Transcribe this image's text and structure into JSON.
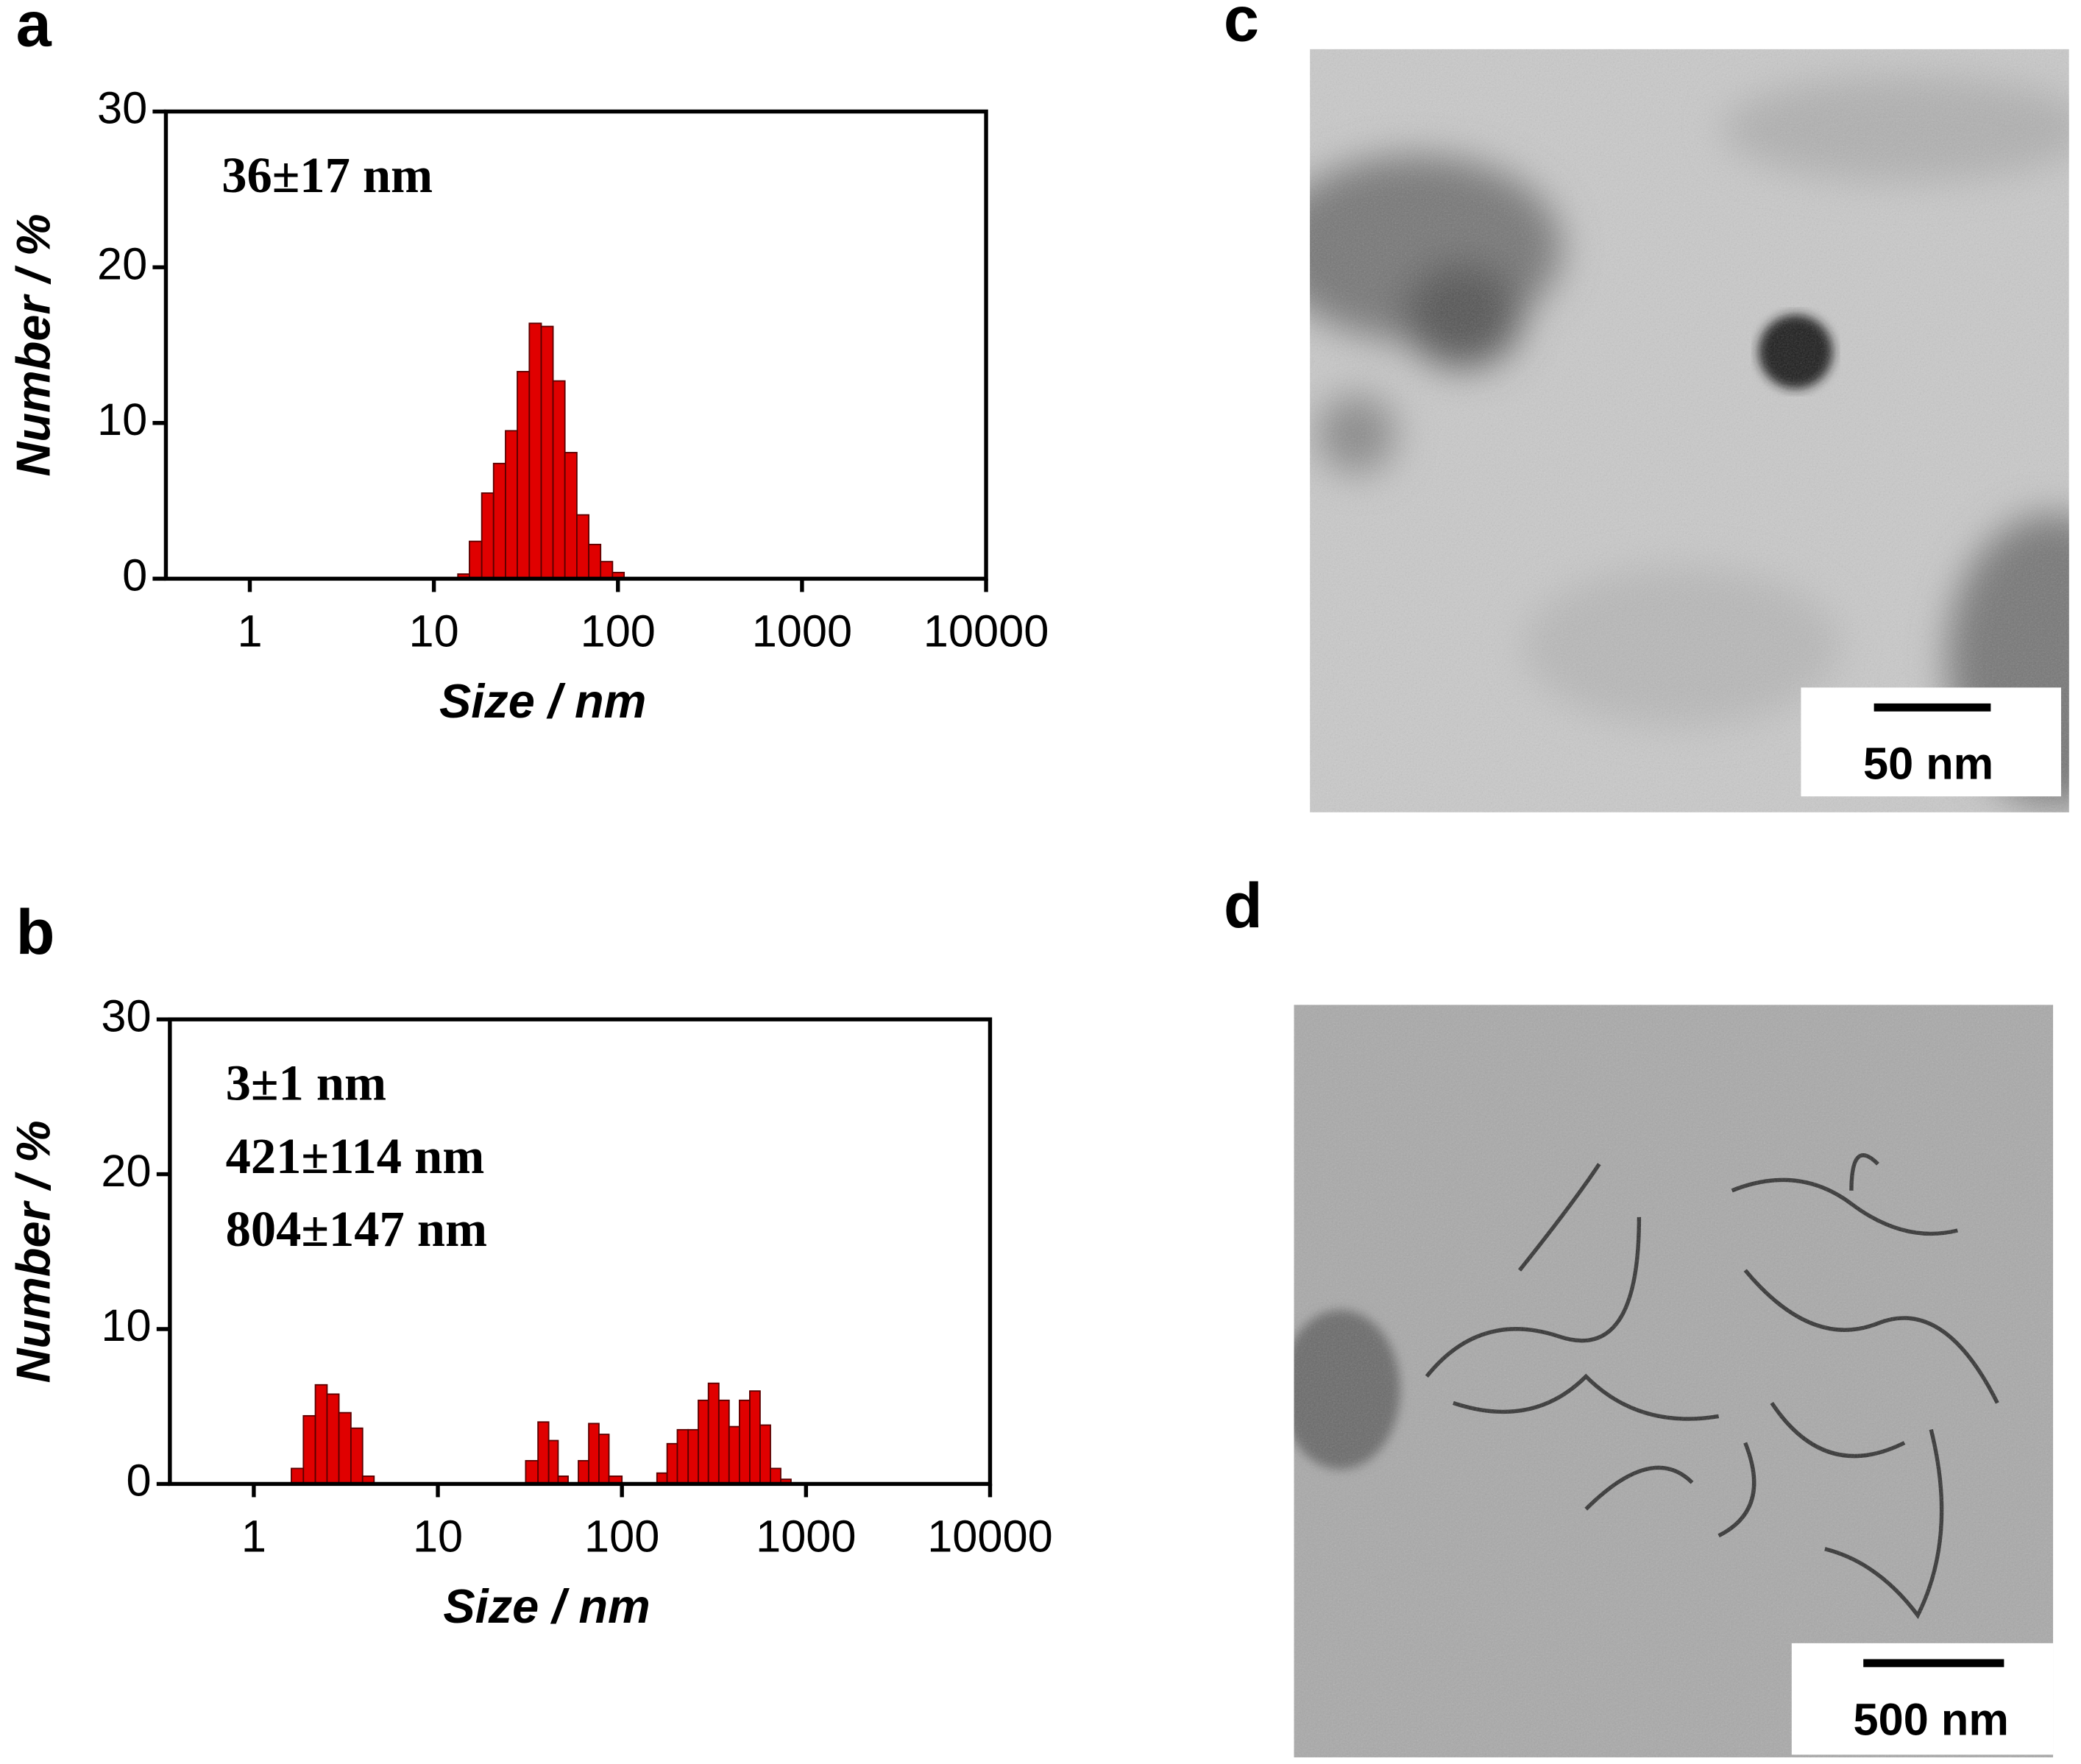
{
  "chart_data": [
    {
      "type": "histogram",
      "panel_label": "a",
      "xlabel": "Size / nm",
      "ylabel": "Number / %",
      "annotations": [
        "36±17 nm"
      ],
      "bins": [
        13.5,
        15.6,
        18.2,
        21.1,
        24.5,
        28.4,
        33,
        38.3,
        44.4,
        51.5,
        59.8,
        69.4,
        80.5,
        93.4,
        108
      ],
      "values": [
        0.3,
        2.4,
        5.5,
        7.4,
        9.5,
        13.3,
        16.4,
        16.2,
        12.7,
        8.1,
        4.1,
        2.2,
        1.1,
        0.4
      ],
      "color": "#e00000",
      "log_x": true,
      "xlim": [
        0.35,
        10000
      ],
      "xticks": [
        1,
        10,
        100,
        1000,
        10000
      ],
      "ylim": [
        0,
        30
      ],
      "yticks": [
        0,
        10,
        20,
        30
      ]
    },
    {
      "type": "histogram",
      "panel_label": "b",
      "xlabel": "Size / nm",
      "ylabel": "Number / %",
      "annotations": [
        "3±1 nm",
        "421±114 nm",
        "804±147 nm"
      ],
      "bins": [
        1.6,
        1.86,
        2.16,
        2.5,
        2.9,
        3.37,
        3.9,
        4.5,
        30,
        35,
        40,
        45,
        51,
        58,
        66,
        75,
        85,
        100,
        155,
        176,
        200,
        229,
        260,
        295,
        336,
        382,
        435,
        495,
        563,
        641,
        729,
        829
      ],
      "values": [
        1.0,
        4.4,
        6.4,
        5.8,
        4.6,
        3.6,
        0.5,
        0,
        1.5,
        4.0,
        2.8,
        0.5,
        0,
        1.5,
        3.9,
        3.2,
        0.5,
        0,
        0.7,
        2.6,
        3.5,
        3.5,
        5.4,
        6.5,
        5.4,
        3.7,
        5.4,
        6.0,
        3.8,
        1.0,
        0.3
      ],
      "color": "#e00000",
      "log_x": true,
      "xlim": [
        0.35,
        10000
      ],
      "xticks": [
        1,
        10,
        100,
        1000,
        10000
      ],
      "ylim": [
        0,
        30
      ],
      "yticks": [
        0,
        10,
        20,
        30
      ]
    }
  ],
  "images": [
    {
      "panel_label": "c",
      "scale_bar": "50 nm"
    },
    {
      "panel_label": "d",
      "scale_bar": "500 nm"
    }
  ]
}
